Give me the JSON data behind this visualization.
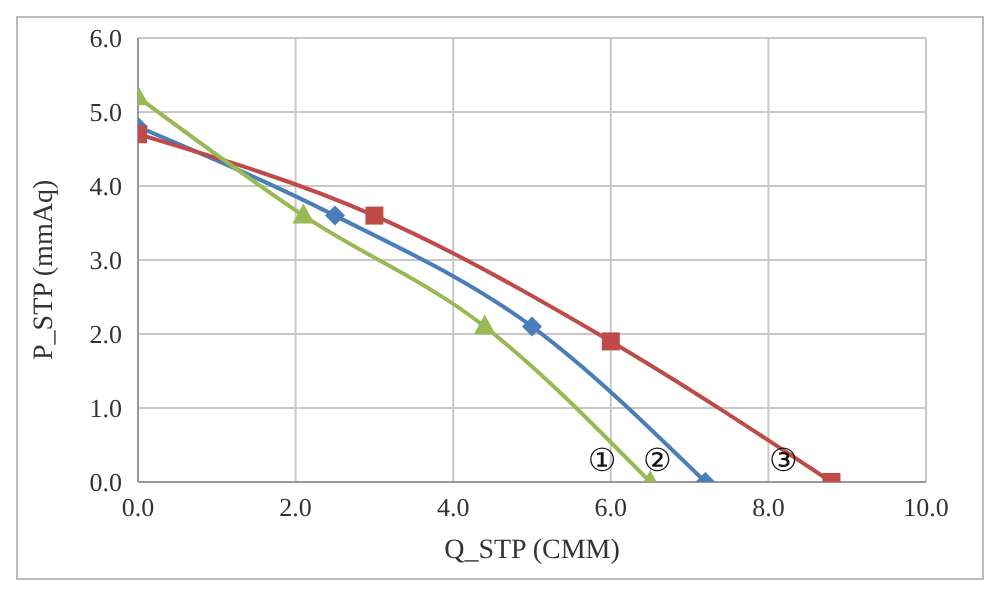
{
  "chart_data": {
    "type": "line",
    "xlabel": "Q_STP (CMM)",
    "ylabel": "P_STP (mmAq)",
    "xlim": [
      0,
      10
    ],
    "xticks": [
      {
        "value": 0,
        "label": "0.0"
      },
      {
        "value": 2,
        "label": "2.0"
      },
      {
        "value": 4,
        "label": "4.0"
      },
      {
        "value": 6,
        "label": "6.0"
      },
      {
        "value": 8,
        "label": "8.0"
      },
      {
        "value": 10,
        "label": "10.0"
      }
    ],
    "ylim": [
      0,
      6
    ],
    "yticks": [
      {
        "value": 0,
        "label": "0.0"
      },
      {
        "value": 1,
        "label": "1.0"
      },
      {
        "value": 2,
        "label": "2.0"
      },
      {
        "value": 3,
        "label": "3.0"
      },
      {
        "value": 4,
        "label": "4.0"
      },
      {
        "value": 5,
        "label": "5.0"
      },
      {
        "value": 6,
        "label": "6.0"
      }
    ],
    "grid": true,
    "legend": false,
    "series": [
      {
        "color": "#4a7ebb",
        "marker": "diamond",
        "x": [
          0,
          2.5,
          5.0,
          7.2
        ],
        "values": [
          4.8,
          3.6,
          2.1,
          0
        ]
      },
      {
        "color": "#be4b48",
        "marker": "square",
        "x": [
          0,
          3.0,
          6.0,
          8.8
        ],
        "values": [
          4.7,
          3.6,
          1.9,
          0
        ]
      },
      {
        "color": "#98b954",
        "marker": "triangle",
        "x": [
          0,
          2.1,
          4.4,
          6.5
        ],
        "values": [
          5.2,
          3.6,
          2.1,
          0
        ]
      }
    ],
    "annotations": [
      {
        "text": "①",
        "x": 6.5,
        "y": 0
      },
      {
        "text": "②",
        "x": 7.2,
        "y": 0
      },
      {
        "text": "③",
        "x": 8.8,
        "y": 0
      }
    ]
  }
}
